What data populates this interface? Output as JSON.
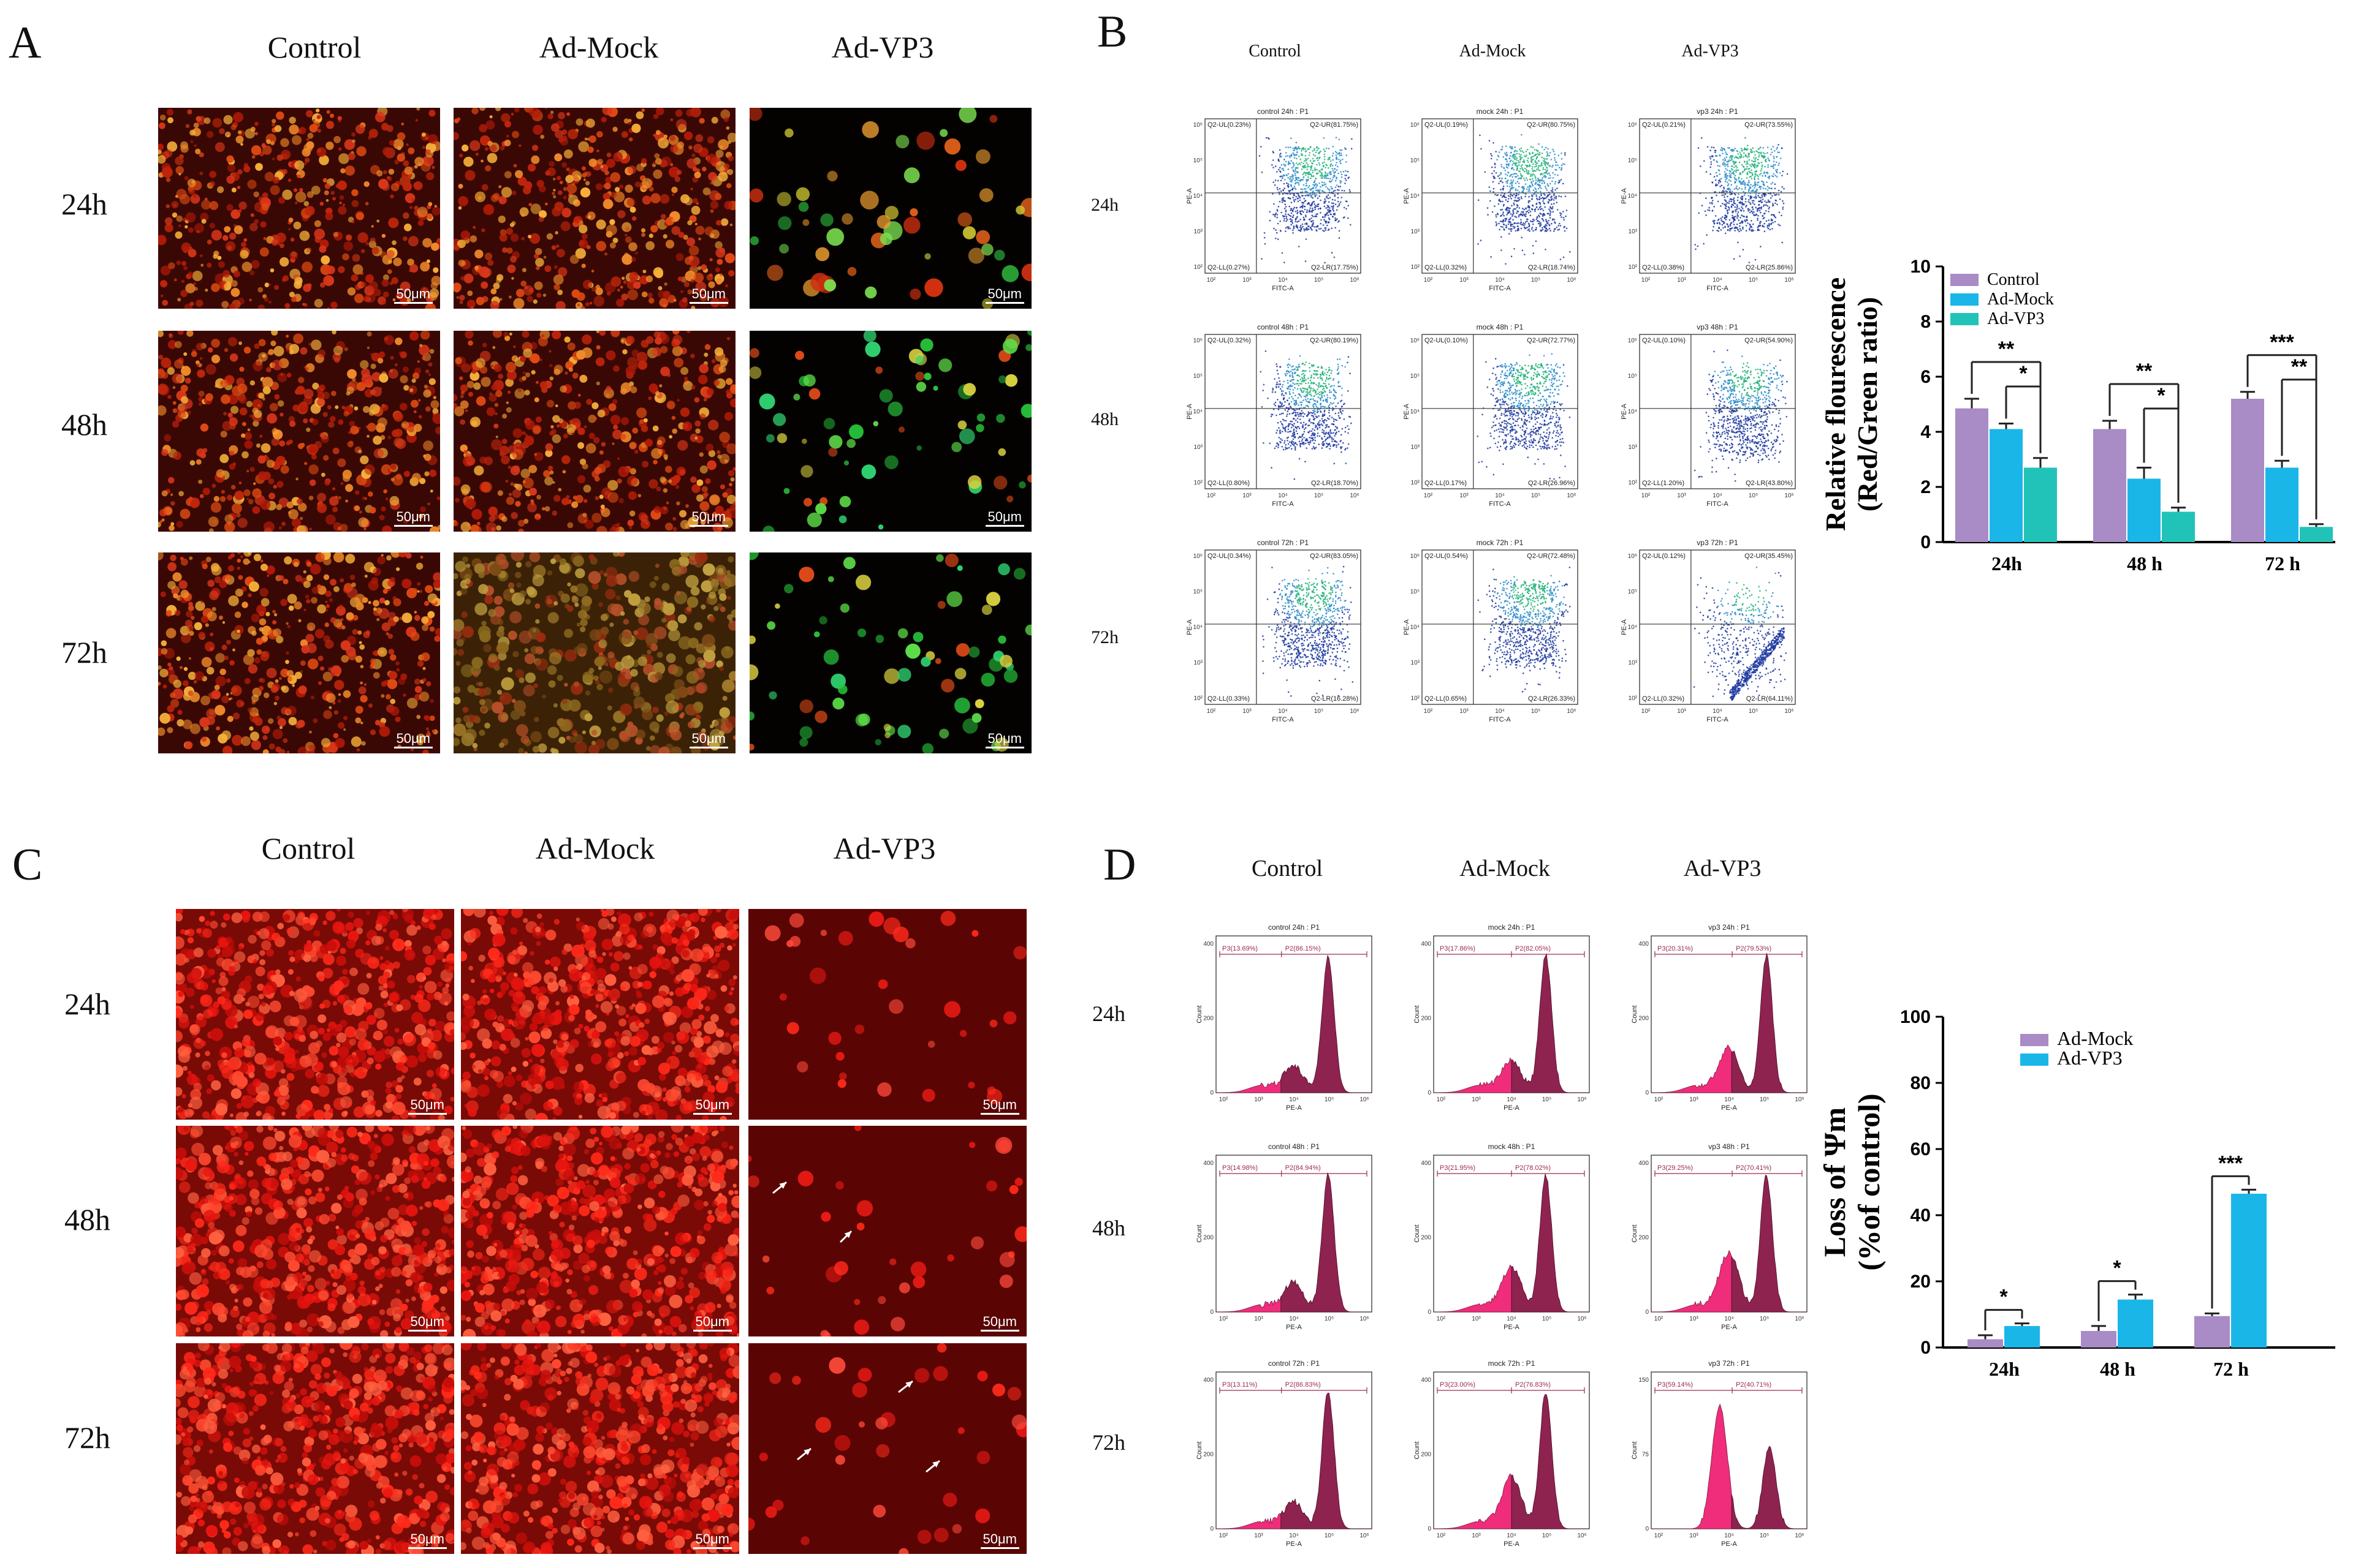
{
  "panels": {
    "A": {
      "letter": "A",
      "columns": [
        "Control",
        "Ad-Mock",
        "Ad-VP3"
      ],
      "rows": [
        "24h",
        "48h",
        "72h"
      ],
      "scale_bar": "50μm"
    },
    "B": {
      "letter": "B",
      "columns": [
        "Control",
        "Ad-Mock",
        "Ad-VP3"
      ],
      "rows": [
        "24h",
        "48h",
        "72h"
      ],
      "axis_x": "FITC-A",
      "axis_y": "PE-A",
      "plots": [
        [
          {
            "title": "control 24h : P1",
            "ul": "Q2-UL(0.23%)",
            "ur": "Q2-UR(81.75%)",
            "ll": "Q2-LL(0.27%)",
            "lr": "Q2-LR(17.75%)"
          },
          {
            "title": "mock 24h : P1",
            "ul": "Q2-UL(0.19%)",
            "ur": "Q2-UR(80.75%)",
            "ll": "Q2-LL(0.32%)",
            "lr": "Q2-LR(18.74%)"
          },
          {
            "title": "vp3 24h : P1",
            "ul": "Q2-UL(0.21%)",
            "ur": "Q2-UR(73.55%)",
            "ll": "Q2-LL(0.38%)",
            "lr": "Q2-LR(25.86%)"
          }
        ],
        [
          {
            "title": "control 48h : P1",
            "ul": "Q2-UL(0.32%)",
            "ur": "Q2-UR(80.19%)",
            "ll": "Q2-LL(0.80%)",
            "lr": "Q2-LR(18.70%)"
          },
          {
            "title": "mock 48h : P1",
            "ul": "Q2-UL(0.10%)",
            "ur": "Q2-UR(72.77%)",
            "ll": "Q2-LL(0.17%)",
            "lr": "Q2-LR(26.96%)"
          },
          {
            "title": "vp3 48h : P1",
            "ul": "Q2-UL(0.10%)",
            "ur": "Q2-UR(54.90%)",
            "ll": "Q2-LL(1.20%)",
            "lr": "Q2-LR(43.80%)"
          }
        ],
        [
          {
            "title": "control 72h : P1",
            "ul": "Q2-UL(0.34%)",
            "ur": "Q2-UR(83.05%)",
            "ll": "Q2-LL(0.33%)",
            "lr": "Q2-LR(16.28%)"
          },
          {
            "title": "mock 72h : P1",
            "ul": "Q2-UL(0.54%)",
            "ur": "Q2-UR(72.48%)",
            "ll": "Q2-LL(0.65%)",
            "lr": "Q2-LR(26.33%)"
          },
          {
            "title": "vp3 72h : P1",
            "ul": "Q2-UL(0.12%)",
            "ur": "Q2-UR(35.45%)",
            "ll": "Q2-LL(0.32%)",
            "lr": "Q2-LR(64.11%)"
          }
        ]
      ]
    },
    "C": {
      "letter": "C",
      "columns": [
        "Control",
        "Ad-Mock",
        "Ad-VP3"
      ],
      "rows": [
        "24h",
        "48h",
        "72h"
      ],
      "scale_bar": "50μm"
    },
    "D": {
      "letter": "D",
      "columns": [
        "Control",
        "Ad-Mock",
        "Ad-VP3"
      ],
      "rows": [
        "24h",
        "48h",
        "72h"
      ],
      "axis_x": "PE-A",
      "axis_y": "Count",
      "plots": [
        [
          {
            "title": "control 24h : P1",
            "p3": "P3(13.69%)",
            "p2": "P2(86.15%)"
          },
          {
            "title": "mock 24h : P1",
            "p3": "P3(17.86%)",
            "p2": "P2(82.05%)"
          },
          {
            "title": "vp3 24h : P1",
            "p3": "P3(20.31%)",
            "p2": "P2(79.53%)"
          }
        ],
        [
          {
            "title": "control 48h : P1",
            "p3": "P3(14.98%)",
            "p2": "P2(84.94%)"
          },
          {
            "title": "mock 48h : P1",
            "p3": "P3(21.95%)",
            "p2": "P2(78.02%)"
          },
          {
            "title": "vp3 48h : P1",
            "p3": "P3(29.25%)",
            "p2": "P2(70.41%)"
          }
        ],
        [
          {
            "title": "control 72h : P1",
            "p3": "P3(13.11%)",
            "p2": "P2(86.83%)"
          },
          {
            "title": "mock 72h : P1",
            "p3": "P3(23.00%)",
            "p2": "P2(76.83%)"
          },
          {
            "title": "vp3 72h : P1",
            "p3": "P3(59.14%)",
            "p2": "P2(40.71%)"
          }
        ]
      ]
    }
  },
  "colors": {
    "control": "#a98bc6",
    "ad_mock": "#1ab6e8",
    "ad_vp3": "#21c3b8",
    "gate": "#9b2c4d",
    "hist_dark": "#8e2350",
    "hist_light": "#ef2d7a"
  },
  "chart_data": [
    {
      "type": "bar",
      "title": "",
      "ylabel": "Relative flourescence (Red/Green ratio)",
      "ylabel_line1": "Relative flourescence",
      "ylabel_line2": "(Red/Green ratio)",
      "categories": [
        "24h",
        "48 h",
        "72 h"
      ],
      "ylim": [
        0,
        10
      ],
      "yticks": [
        0,
        2,
        4,
        6,
        8,
        10
      ],
      "legend_position": "top-left",
      "series": [
        {
          "name": "Control",
          "values": [
            4.85,
            4.1,
            5.2
          ],
          "errors": [
            0.35,
            0.3,
            0.25
          ]
        },
        {
          "name": "Ad-Mock",
          "values": [
            4.1,
            2.3,
            2.7
          ],
          "errors": [
            0.2,
            0.4,
            0.25
          ]
        },
        {
          "name": "Ad-VP3",
          "values": [
            2.7,
            1.1,
            0.55
          ],
          "errors": [
            0.35,
            0.15,
            0.1
          ]
        }
      ],
      "significance": [
        {
          "category": 0,
          "from": 0,
          "to": 2,
          "label": "**"
        },
        {
          "category": 0,
          "from": 1,
          "to": 2,
          "label": "*"
        },
        {
          "category": 1,
          "from": 0,
          "to": 2,
          "label": "**"
        },
        {
          "category": 1,
          "from": 1,
          "to": 2,
          "label": "*"
        },
        {
          "category": 2,
          "from": 0,
          "to": 2,
          "label": "***"
        },
        {
          "category": 2,
          "from": 1,
          "to": 2,
          "label": "**"
        }
      ]
    },
    {
      "type": "bar",
      "title": "",
      "ylabel": "Loss of Ψm (%of control)",
      "ylabel_line1": "Loss of Ψm",
      "ylabel_line2": "(%of control)",
      "categories": [
        "24h",
        "48 h",
        "72 h"
      ],
      "ylim": [
        0,
        100
      ],
      "yticks": [
        0,
        20,
        40,
        60,
        80,
        100
      ],
      "legend_position": "top-left",
      "series": [
        {
          "name": "Ad-Mock",
          "values": [
            2.5,
            5.0,
            9.5
          ],
          "errors": [
            1.2,
            1.5,
            0.8
          ]
        },
        {
          "name": "Ad-VP3",
          "values": [
            6.5,
            14.5,
            46.5
          ],
          "errors": [
            0.8,
            1.5,
            1.2
          ]
        }
      ],
      "significance": [
        {
          "category": 0,
          "from": 0,
          "to": 1,
          "label": "*"
        },
        {
          "category": 1,
          "from": 0,
          "to": 1,
          "label": "*"
        },
        {
          "category": 2,
          "from": 0,
          "to": 1,
          "label": "***"
        }
      ]
    }
  ]
}
